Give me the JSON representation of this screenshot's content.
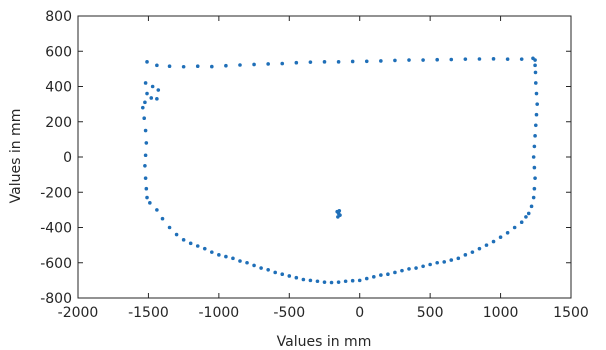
{
  "chart_data": {
    "type": "scatter",
    "xlabel": "Values in mm",
    "ylabel": "Values in mm",
    "xlim": [
      -2000,
      1500
    ],
    "ylim": [
      -800,
      800
    ],
    "xticks": [
      -2000,
      -1500,
      -1000,
      -500,
      0,
      500,
      1000,
      1500
    ],
    "yticks": [
      -800,
      -600,
      -400,
      -200,
      0,
      200,
      400,
      600,
      800
    ],
    "xtick_labels": [
      "-2000",
      "-1500",
      "-1000",
      "-500",
      "0",
      "500",
      "1000",
      "1500"
    ],
    "ytick_labels": [
      "-800",
      "-600",
      "-400",
      "-200",
      "0",
      "200",
      "400",
      "600",
      "800"
    ],
    "grid": false,
    "marker_color": "#1f6fb8",
    "series": [
      {
        "values": [
          [
            -1510,
            540
          ],
          [
            -1440,
            520
          ],
          [
            -1350,
            515
          ],
          [
            -1250,
            512
          ],
          [
            -1150,
            515
          ],
          [
            -1050,
            513
          ],
          [
            -950,
            518
          ],
          [
            -850,
            522
          ],
          [
            -750,
            525
          ],
          [
            -650,
            528
          ],
          [
            -550,
            530
          ],
          [
            -450,
            535
          ],
          [
            -350,
            538
          ],
          [
            -250,
            540
          ],
          [
            -150,
            540
          ],
          [
            -50,
            542
          ],
          [
            50,
            543
          ],
          [
            150,
            545
          ],
          [
            250,
            548
          ],
          [
            350,
            550
          ],
          [
            450,
            550
          ],
          [
            550,
            552
          ],
          [
            650,
            553
          ],
          [
            750,
            555
          ],
          [
            850,
            556
          ],
          [
            950,
            557
          ],
          [
            1050,
            555
          ],
          [
            1150,
            555
          ],
          [
            1230,
            560
          ],
          [
            1245,
            550
          ],
          [
            -1520,
            420
          ],
          [
            -1510,
            360
          ],
          [
            -1525,
            310
          ],
          [
            -1480,
            335
          ],
          [
            -1440,
            330
          ],
          [
            -1430,
            380
          ],
          [
            -1470,
            400
          ],
          [
            -1540,
            280
          ],
          [
            -1530,
            220
          ],
          [
            -1520,
            150
          ],
          [
            -1515,
            80
          ],
          [
            -1520,
            10
          ],
          [
            -1525,
            -50
          ],
          [
            -1520,
            -120
          ],
          [
            -1515,
            -180
          ],
          [
            -1510,
            -230
          ],
          [
            -1490,
            -260
          ],
          [
            -1440,
            -300
          ],
          [
            -1400,
            -350
          ],
          [
            -1350,
            -400
          ],
          [
            -1300,
            -440
          ],
          [
            -1250,
            -470
          ],
          [
            -1200,
            -490
          ],
          [
            -1150,
            -505
          ],
          [
            -1100,
            -520
          ],
          [
            -1050,
            -540
          ],
          [
            -1000,
            -555
          ],
          [
            -950,
            -565
          ],
          [
            -900,
            -575
          ],
          [
            -850,
            -590
          ],
          [
            -800,
            -600
          ],
          [
            -750,
            -615
          ],
          [
            -700,
            -630
          ],
          [
            -650,
            -640
          ],
          [
            -600,
            -655
          ],
          [
            -550,
            -665
          ],
          [
            -500,
            -675
          ],
          [
            -450,
            -685
          ],
          [
            -400,
            -695
          ],
          [
            -350,
            -700
          ],
          [
            -300,
            -705
          ],
          [
            -250,
            -710
          ],
          [
            -200,
            -712
          ],
          [
            -150,
            -710
          ],
          [
            -100,
            -705
          ],
          [
            -50,
            -702
          ],
          [
            0,
            -700
          ],
          [
            50,
            -690
          ],
          [
            100,
            -680
          ],
          [
            150,
            -670
          ],
          [
            200,
            -665
          ],
          [
            250,
            -655
          ],
          [
            300,
            -645
          ],
          [
            350,
            -635
          ],
          [
            400,
            -630
          ],
          [
            450,
            -620
          ],
          [
            500,
            -610
          ],
          [
            550,
            -600
          ],
          [
            600,
            -595
          ],
          [
            650,
            -585
          ],
          [
            700,
            -575
          ],
          [
            750,
            -555
          ],
          [
            800,
            -540
          ],
          [
            850,
            -520
          ],
          [
            900,
            -500
          ],
          [
            950,
            -480
          ],
          [
            1000,
            -455
          ],
          [
            1050,
            -430
          ],
          [
            1100,
            -400
          ],
          [
            1150,
            -370
          ],
          [
            1180,
            -340
          ],
          [
            1200,
            -320
          ],
          [
            1220,
            -280
          ],
          [
            1235,
            -230
          ],
          [
            1240,
            -180
          ],
          [
            1245,
            -120
          ],
          [
            1240,
            -60
          ],
          [
            1235,
            0
          ],
          [
            1240,
            60
          ],
          [
            1245,
            120
          ],
          [
            1250,
            180
          ],
          [
            1255,
            240
          ],
          [
            1260,
            300
          ],
          [
            1255,
            360
          ],
          [
            1250,
            420
          ],
          [
            1248,
            480
          ],
          [
            1245,
            520
          ],
          [
            -160,
            -310
          ],
          [
            -150,
            -320
          ],
          [
            -140,
            -330
          ],
          [
            -155,
            -340
          ],
          [
            -145,
            -305
          ]
        ]
      }
    ]
  }
}
